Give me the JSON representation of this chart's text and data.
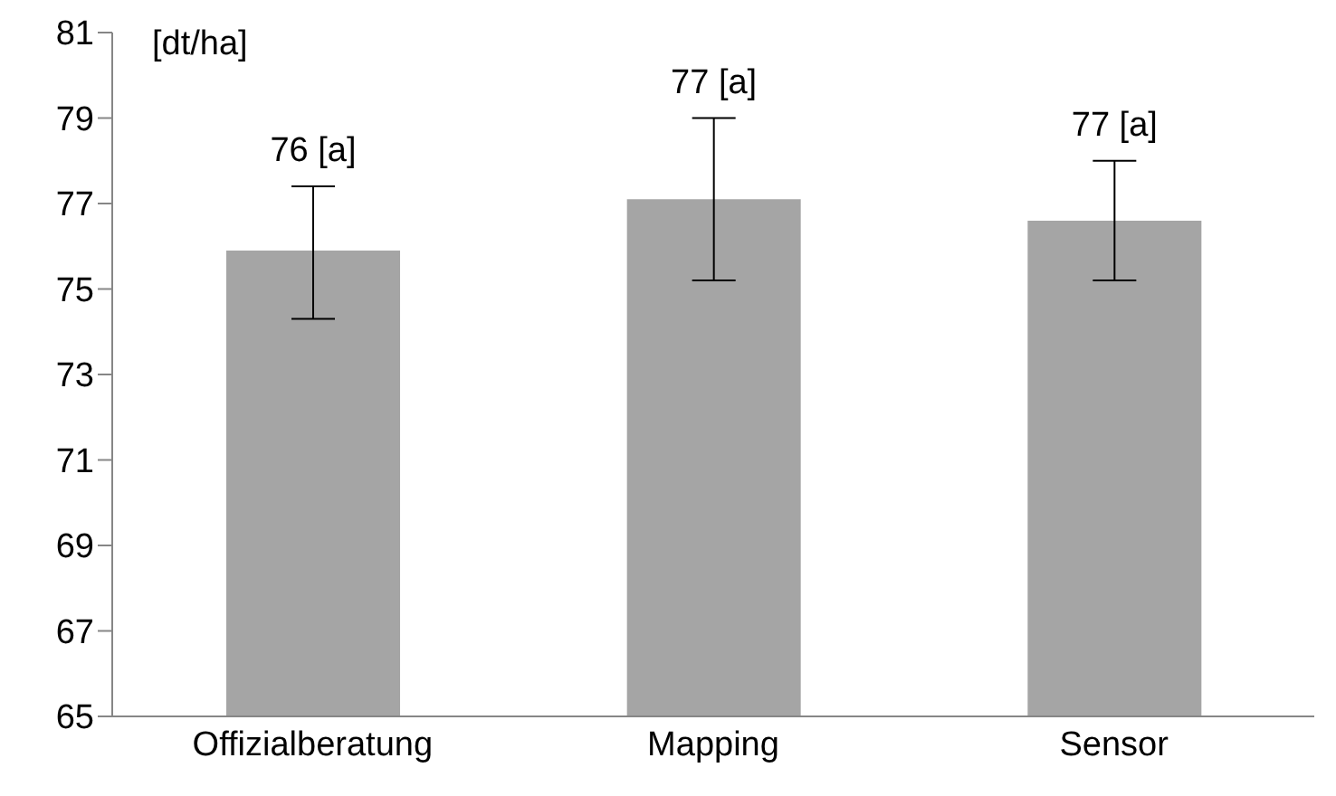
{
  "chart_data": {
    "type": "bar",
    "ylabel": "[dt/ha]",
    "categories": [
      "Offizialberatung",
      "Mapping",
      "Sensor"
    ],
    "values": [
      75.9,
      77.1,
      76.6
    ],
    "errors": [
      [
        74.3,
        77.4
      ],
      [
        75.2,
        79.0
      ],
      [
        75.2,
        78.0
      ]
    ],
    "value_labels": [
      "76 [a]",
      "77 [a]",
      "77 [a]"
    ],
    "color": "#a5a5a5",
    "ylim": [
      65,
      81
    ],
    "yticks": [
      65,
      67,
      69,
      71,
      73,
      75,
      77,
      79,
      81
    ],
    "grid": false,
    "legend": false
  }
}
